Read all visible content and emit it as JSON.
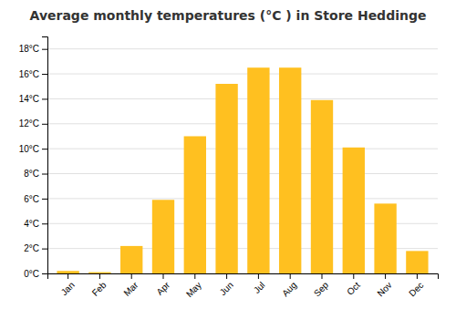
{
  "chart_data": {
    "type": "bar",
    "title": "Average monthly temperatures (°C ) in Store Heddinge",
    "categories": [
      "Jan",
      "Feb",
      "Mar",
      "Apr",
      "May",
      "Jun",
      "Jul",
      "Aug",
      "Sep",
      "Oct",
      "Nov",
      "Dec"
    ],
    "values": [
      0.2,
      0.1,
      2.2,
      5.9,
      11.0,
      15.2,
      16.5,
      16.5,
      13.9,
      10.1,
      5.6,
      1.8
    ],
    "color": "#FFC020",
    "ylim": [
      0,
      19
    ],
    "yticks": [
      {
        "value": 0,
        "label": "0°C"
      },
      {
        "value": 2,
        "label": "2°C"
      },
      {
        "value": 4,
        "label": "4°C"
      },
      {
        "value": 6,
        "label": "6°C"
      },
      {
        "value": 8,
        "label": "8°C"
      },
      {
        "value": 10,
        "label": "10°C"
      },
      {
        "value": 12,
        "label": "12°C"
      },
      {
        "value": 14,
        "label": "14°C"
      },
      {
        "value": 16,
        "label": "16°C"
      },
      {
        "value": 18,
        "label": "18°C"
      }
    ],
    "grid": true
  }
}
